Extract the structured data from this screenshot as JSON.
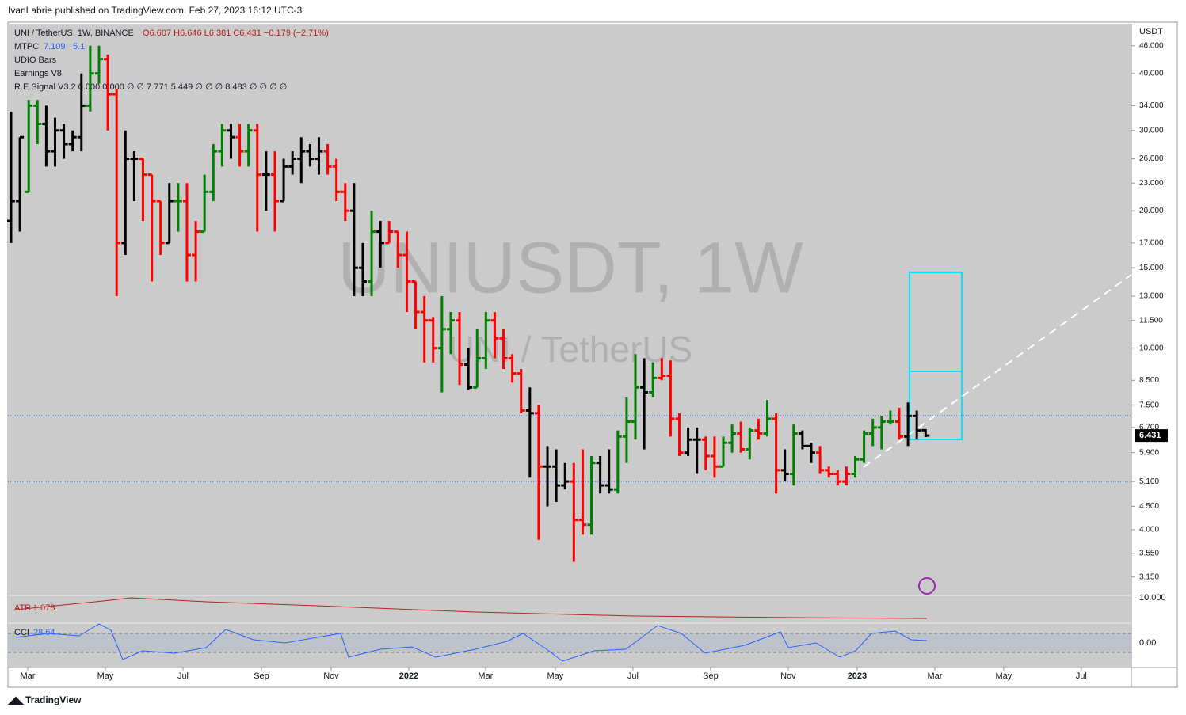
{
  "header": {
    "publisher": "IvanLabrie published on TradingView.com, Feb 27, 2023 16:12 UTC-3",
    "footer": "TradingView"
  },
  "chart_data": {
    "type": "ohlc",
    "legend": [
      "UNI / TetherUS, 1W, BINANCE",
      "O6.607 H6.646 L6.381 C6.431 −0.179 (−2.71%)",
      "MTPC",
      "UDIO Bars",
      "Earnings V8",
      "R.E.Signal V3.2 0.000 0.000 ∅ ∅ 7.771 5.449 ∅ ∅ ∅ 8.483 ∅ ∅ ∅ ∅"
    ],
    "watermark": "UNIUSDT, 1W",
    "watermark_sub": "UNI / TetherUS",
    "y_axis_unit": "USDT",
    "levels": [
      7.109,
      5.1
    ],
    "atr_label": "ATR",
    "atr_value": 1.078,
    "cci_label": "CCI",
    "cci_value": 28.64,
    "cci_tick": "0.00",
    "atr_tick": "10.000",
    "log_scale": true,
    "ylim": [
      2.87,
      51.4
    ],
    "xlim": [
      -0.36,
      127.4
    ],
    "yticks": [
      {
        "value": 46,
        "label": "46.000"
      },
      {
        "value": 40,
        "label": "40.000"
      },
      {
        "value": 34,
        "label": "34.000"
      },
      {
        "value": 30,
        "label": "30.000"
      },
      {
        "value": 26,
        "label": "26.000"
      },
      {
        "value": 23,
        "label": "23.000"
      },
      {
        "value": 20,
        "label": "20.000"
      },
      {
        "value": 17,
        "label": "17.000"
      },
      {
        "value": 15,
        "label": "15.000"
      },
      {
        "value": 13,
        "label": "13.000"
      },
      {
        "value": 11.5,
        "label": "11.500"
      },
      {
        "value": 10,
        "label": "10.000"
      },
      {
        "value": 8.5,
        "label": "8.500"
      },
      {
        "value": 7.5,
        "label": "7.500"
      },
      {
        "value": 6.7,
        "label": "6.700"
      },
      {
        "value": 5.9,
        "label": "5.900"
      },
      {
        "value": 5.1,
        "label": "5.100"
      },
      {
        "value": 4.5,
        "label": "4.500"
      },
      {
        "value": 4,
        "label": "4.000"
      },
      {
        "value": 3.55,
        "label": "3.550"
      },
      {
        "value": 3.15,
        "label": "3.150"
      }
    ],
    "xticks": [
      {
        "value": 1.89,
        "label": "Mar"
      },
      {
        "value": 10.72,
        "label": "May"
      },
      {
        "value": 19.55,
        "label": "Jul"
      },
      {
        "value": 28.47,
        "label": "Sep"
      },
      {
        "value": 36.4,
        "label": "Nov"
      },
      {
        "value": 45.23,
        "label": "2022"
      },
      {
        "value": 53.96,
        "label": "Mar"
      },
      {
        "value": 61.89,
        "label": "May"
      },
      {
        "value": 70.72,
        "label": "Jul"
      },
      {
        "value": 79.55,
        "label": "Sep"
      },
      {
        "value": 88.38,
        "label": "Nov"
      },
      {
        "value": 96.22,
        "label": "2023"
      },
      {
        "value": 105.05,
        "label": "Mar"
      },
      {
        "value": 112.88,
        "label": "May"
      },
      {
        "value": 121.71,
        "label": "Jul"
      }
    ],
    "ohlc": [
      [
        19,
        33,
        17,
        21
      ],
      [
        21,
        29,
        18,
        29
      ],
      [
        22,
        35,
        22,
        34
      ],
      [
        34,
        35,
        28,
        31
      ],
      [
        31,
        34,
        25,
        27
      ],
      [
        27,
        32,
        25,
        30
      ],
      [
        30,
        31,
        26,
        28
      ],
      [
        28,
        30,
        27,
        29
      ],
      [
        29,
        40,
        27,
        34
      ],
      [
        34,
        46,
        33,
        40
      ],
      [
        40,
        46,
        38,
        43
      ],
      [
        43,
        44,
        30,
        36
      ],
      [
        36,
        37,
        13,
        17
      ],
      [
        17,
        30,
        16,
        26
      ],
      [
        26,
        27,
        21,
        26
      ],
      [
        26,
        26,
        19,
        24
      ],
      [
        24,
        24,
        14,
        21
      ],
      [
        21,
        21,
        16,
        17
      ],
      [
        17,
        23,
        17,
        21
      ],
      [
        21,
        23,
        18,
        21
      ],
      [
        21,
        23,
        14,
        16
      ],
      [
        16,
        19,
        14,
        18
      ],
      [
        18,
        24,
        18,
        22
      ],
      [
        22,
        28,
        21,
        27
      ],
      [
        27,
        31,
        25,
        30
      ],
      [
        30,
        31,
        26,
        29
      ],
      [
        29,
        31,
        25,
        27
      ],
      [
        27,
        31,
        25,
        30
      ],
      [
        30,
        31,
        18,
        24
      ],
      [
        24,
        27,
        20,
        24
      ],
      [
        24,
        27,
        18,
        21
      ],
      [
        21,
        26,
        21,
        25
      ],
      [
        25,
        27,
        24,
        26
      ],
      [
        26,
        29,
        23,
        27
      ],
      [
        27,
        28,
        25,
        26
      ],
      [
        26,
        29,
        24,
        27
      ],
      [
        27,
        28,
        24,
        25
      ],
      [
        25,
        26,
        21,
        22
      ],
      [
        22,
        23,
        19,
        20
      ],
      [
        20,
        23,
        13,
        15
      ],
      [
        15,
        17,
        13,
        14
      ],
      [
        14,
        20,
        13,
        18
      ],
      [
        18,
        19,
        15,
        17
      ],
      [
        17,
        19,
        17,
        18
      ],
      [
        18,
        18,
        15,
        16
      ],
      [
        16,
        18,
        12,
        14
      ],
      [
        14,
        14,
        11,
        12
      ],
      [
        12,
        13,
        9.3,
        11.5
      ],
      [
        11.5,
        11.7,
        9.3,
        10
      ],
      [
        10,
        13,
        8,
        11
      ],
      [
        11,
        12,
        9.7,
        11.5
      ],
      [
        11.5,
        12,
        8.3,
        9.2
      ],
      [
        9.2,
        10,
        8.1,
        8.2
      ],
      [
        8.2,
        11,
        8.2,
        9.5
      ],
      [
        9.5,
        12,
        9,
        11.5
      ],
      [
        11.5,
        12,
        9.5,
        10.5
      ],
      [
        10.5,
        11,
        9,
        9.5
      ],
      [
        9.5,
        9.7,
        8.4,
        8.8
      ],
      [
        8.8,
        9,
        7.2,
        7.3
      ],
      [
        7.3,
        8.2,
        5.2,
        7.2
      ],
      [
        7.2,
        7.5,
        3.8,
        5.5
      ],
      [
        5.5,
        6.1,
        4.5,
        5.5
      ],
      [
        5.5,
        6,
        4.6,
        5
      ],
      [
        5,
        5.6,
        4.9,
        5.1
      ],
      [
        5.1,
        5.6,
        3.4,
        4.2
      ],
      [
        4.2,
        6,
        3.9,
        4.1
      ],
      [
        4.1,
        5.8,
        3.9,
        5.6
      ],
      [
        5.6,
        5.8,
        4.8,
        5
      ],
      [
        5,
        6,
        4.8,
        4.9
      ],
      [
        4.9,
        6.6,
        4.8,
        6.4
      ],
      [
        6.4,
        7.8,
        5.6,
        6.9
      ],
      [
        6.9,
        9.7,
        6.3,
        8.2
      ],
      [
        8.2,
        9.5,
        6,
        8
      ],
      [
        8,
        9.3,
        7.8,
        8.6
      ],
      [
        8.6,
        9.5,
        8.5,
        8.7
      ],
      [
        8.7,
        9.4,
        6.4,
        7
      ],
      [
        7,
        7.2,
        5.8,
        5.9
      ],
      [
        5.9,
        6.7,
        5.8,
        6.3
      ],
      [
        6.3,
        6.7,
        5.3,
        6.3
      ],
      [
        6.3,
        6.4,
        5.4,
        5.8
      ],
      [
        5.8,
        6.4,
        5.2,
        5.5
      ],
      [
        5.5,
        6.4,
        5.5,
        6.2
      ],
      [
        6.2,
        6.8,
        5.9,
        6.5
      ],
      [
        6.5,
        6.9,
        5.9,
        6
      ],
      [
        6,
        6.7,
        5.7,
        6.6
      ],
      [
        6.6,
        7,
        6.3,
        6.5
      ],
      [
        6.5,
        7.7,
        6.4,
        7
      ],
      [
        7,
        7.2,
        4.8,
        5.4
      ],
      [
        5.4,
        6,
        5.1,
        5.3
      ],
      [
        5.3,
        6.8,
        5,
        6.5
      ],
      [
        6.5,
        6.6,
        6,
        6.1
      ],
      [
        6.1,
        6.2,
        5.6,
        5.9
      ],
      [
        5.9,
        6.1,
        5.3,
        5.4
      ],
      [
        5.4,
        5.5,
        5.2,
        5.3
      ],
      [
        5.3,
        5.4,
        5,
        5.1
      ],
      [
        5.1,
        5.5,
        5,
        5.3
      ],
      [
        5.3,
        5.8,
        5.2,
        5.7
      ],
      [
        5.7,
        6.6,
        5.6,
        6.5
      ],
      [
        6.5,
        7,
        6.1,
        6.7
      ],
      [
        6.7,
        7.1,
        6,
        6.9
      ],
      [
        6.9,
        7.3,
        6.8,
        6.9
      ],
      [
        6.9,
        7.4,
        6.3,
        6.4
      ],
      [
        6.4,
        7.6,
        6.1,
        7.1
      ],
      [
        7.1,
        7.3,
        6.3,
        6.6
      ],
      [
        6.607,
        6.646,
        6.381,
        6.431
      ]
    ],
    "colors": [
      "black",
      "black",
      "green",
      "green",
      "black",
      "black",
      "black",
      "black",
      "black",
      "green",
      "green",
      "red",
      "red",
      "black",
      "black",
      "red",
      "red",
      "red",
      "black",
      "green",
      "red",
      "red",
      "green",
      "green",
      "green",
      "black",
      "red",
      "green",
      "red",
      "black",
      "red",
      "black",
      "black",
      "black",
      "black",
      "black",
      "red",
      "red",
      "red",
      "black",
      "black",
      "green",
      "black",
      "red",
      "red",
      "red",
      "red",
      "red",
      "red",
      "green",
      "green",
      "red",
      "black",
      "green",
      "green",
      "red",
      "red",
      "red",
      "red",
      "black",
      "red",
      "black",
      "black",
      "black",
      "red",
      "red",
      "green",
      "black",
      "black",
      "green",
      "green",
      "green",
      "black",
      "green",
      "red",
      "red",
      "red",
      "black",
      "black",
      "red",
      "red",
      "green",
      "green",
      "red",
      "green",
      "red",
      "green",
      "red",
      "black",
      "green",
      "black",
      "black",
      "red",
      "red",
      "red",
      "red",
      "green",
      "green",
      "green",
      "green",
      "green",
      "red",
      "black",
      "black",
      "black"
    ]
  }
}
